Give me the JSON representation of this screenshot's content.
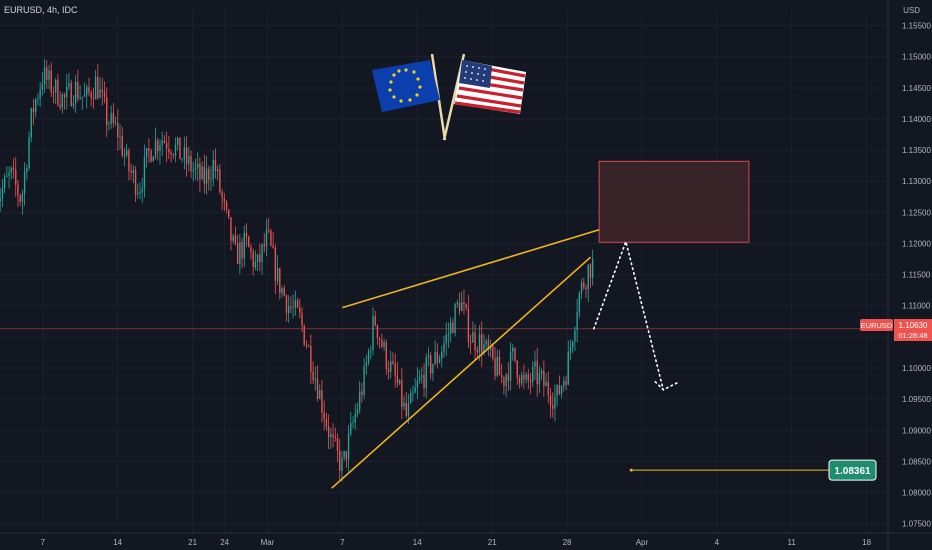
{
  "header": {
    "symbol_text": "EURUSD, 4h, IDC",
    "currency": "USD"
  },
  "price_tag": {
    "symbol": "EURUSD",
    "price": "1.10630",
    "countdown": "01:28:48"
  },
  "target_tag": {
    "value": "1.08361"
  },
  "colors": {
    "background": "#131722",
    "up": "#26a69a",
    "down": "#ef5350",
    "trendline": "#f2b41c",
    "zone_fill": "#3b2328",
    "zone_border": "#d84a4a",
    "target": "#1e8c6d"
  },
  "icons": {
    "flag_eu": "eu-flag-icon",
    "flag_us": "us-flag-icon"
  },
  "chart_data": {
    "type": "candlestick",
    "title": "EURUSD, 4h, IDC",
    "ylabel": "USD",
    "ylim": [
      1.0735,
      1.1575
    ],
    "price_ticks": [
      1.155,
      1.15,
      1.145,
      1.14,
      1.135,
      1.13,
      1.125,
      1.12,
      1.115,
      1.11,
      1.105,
      1.1,
      1.095,
      1.09,
      1.085,
      1.08,
      1.075
    ],
    "x_ticks": [
      "7",
      "14",
      "21",
      "24",
      "Mar",
      "7",
      "14",
      "21",
      "28",
      "Apr",
      "4",
      "11",
      "18"
    ],
    "last_price": 1.1063,
    "close_path": [
      [
        0,
        1.128
      ],
      [
        1,
        1.131
      ],
      [
        2,
        1.127
      ],
      [
        3,
        1.141
      ],
      [
        4,
        1.147
      ],
      [
        5,
        1.145
      ],
      [
        6,
        1.143
      ],
      [
        7,
        1.145
      ],
      [
        8,
        1.143
      ],
      [
        9,
        1.146
      ],
      [
        10,
        1.14
      ],
      [
        11,
        1.138
      ],
      [
        12,
        1.132
      ],
      [
        13,
        1.129
      ],
      [
        14,
        1.135
      ],
      [
        15,
        1.137
      ],
      [
        16,
        1.136
      ],
      [
        17,
        1.134
      ],
      [
        18,
        1.132
      ],
      [
        19,
        1.13
      ],
      [
        20,
        1.133
      ],
      [
        21,
        1.125
      ],
      [
        22,
        1.118
      ],
      [
        23,
        1.12
      ],
      [
        24,
        1.116
      ],
      [
        25,
        1.121
      ],
      [
        26,
        1.114
      ],
      [
        27,
        1.11
      ],
      [
        28,
        1.108
      ],
      [
        29,
        1.102
      ],
      [
        30,
        1.095
      ],
      [
        31,
        1.088
      ],
      [
        32,
        1.084
      ],
      [
        33,
        1.091
      ],
      [
        34,
        1.098
      ],
      [
        35,
        1.108
      ],
      [
        36,
        1.102
      ],
      [
        37,
        1.098
      ],
      [
        38,
        1.092
      ],
      [
        39,
        1.097
      ],
      [
        40,
        1.1
      ],
      [
        41,
        1.102
      ],
      [
        42,
        1.106
      ],
      [
        43,
        1.111
      ],
      [
        44,
        1.105
      ],
      [
        45,
        1.104
      ],
      [
        46,
        1.101
      ],
      [
        47,
        1.098
      ],
      [
        48,
        1.102
      ],
      [
        49,
        1.097
      ],
      [
        50,
        1.099
      ],
      [
        51,
        1.097
      ],
      [
        52,
        1.095
      ],
      [
        53,
        1.1
      ],
      [
        54,
        1.111
      ],
      [
        55,
        1.116
      ],
      [
        56,
        1.1178
      ],
      [
        57,
        1.11
      ],
      [
        58,
        1.1063
      ]
    ],
    "candle_count": 270,
    "candles_end_day": 58.5,
    "day_ticks_day": [
      7,
      14,
      21,
      24,
      28,
      35,
      42,
      49,
      56,
      63,
      70,
      77,
      84
    ],
    "x_range_days": [
      3,
      86
    ],
    "supply_zone": {
      "from_day": 59,
      "to_day": 73,
      "low": 1.1202,
      "high": 1.1332
    },
    "rising_wedge": {
      "upper": [
        [
          35,
          1.1097
        ],
        [
          59,
          1.1222
        ]
      ],
      "lower": [
        [
          34,
          1.0807
        ],
        [
          58.2,
          1.1178
        ]
      ]
    },
    "projection": [
      [
        58.5,
        1.1063
      ],
      [
        61.5,
        1.1203
      ],
      [
        65,
        1.0965
      ],
      [
        66.5,
        1.0978
      ]
    ],
    "target": {
      "from_day": 62,
      "to_day": 70,
      "price": 1.0836
    }
  }
}
